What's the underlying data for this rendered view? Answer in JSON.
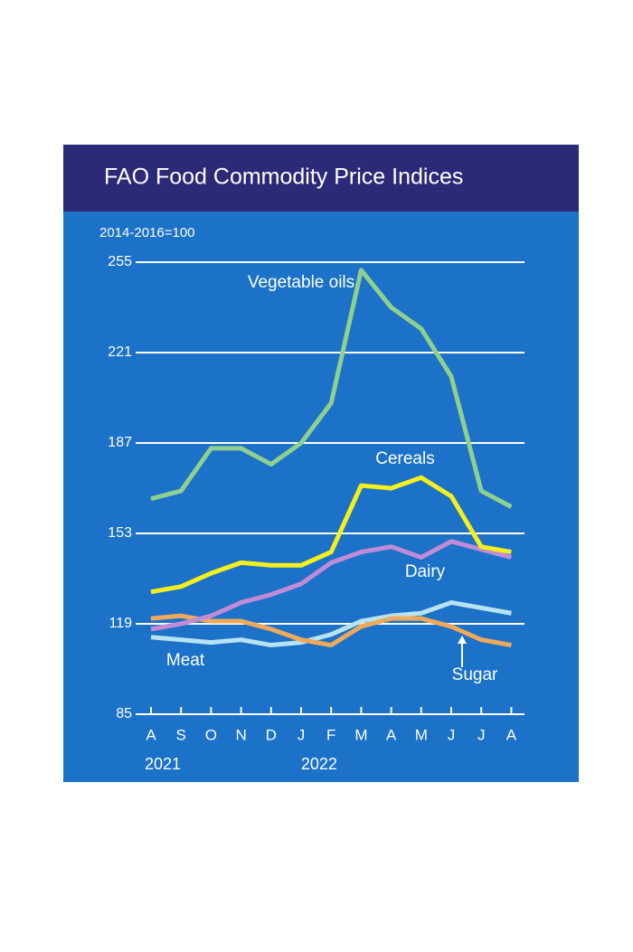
{
  "chart_data": {
    "type": "line",
    "title": "FAO Food Commodity Price Indices",
    "y_unit_label": "2014-2016=100",
    "categories": [
      "A",
      "S",
      "O",
      "N",
      "D",
      "J",
      "F",
      "M",
      "A",
      "M",
      "J",
      "J",
      "A"
    ],
    "year_labels": [
      "2021",
      "2022"
    ],
    "ylim": [
      85,
      255
    ],
    "yticks": [
      85,
      119,
      153,
      187,
      221,
      255
    ],
    "grid": true,
    "series": [
      {
        "name": "Vegetable oils",
        "color": "#8fd08f",
        "values": [
          166,
          169,
          185,
          185,
          179,
          187,
          202,
          252,
          238,
          230,
          212,
          169,
          163
        ]
      },
      {
        "name": "Cereals",
        "color": "#f6ef1c",
        "values": [
          131,
          133,
          138,
          142,
          141,
          141,
          146,
          171,
          170,
          174,
          167,
          148,
          146
        ]
      },
      {
        "name": "Dairy",
        "color": "#c28bd8",
        "values": [
          117,
          119,
          122,
          127,
          130,
          134,
          142,
          146,
          148,
          144,
          150,
          147,
          144
        ]
      },
      {
        "name": "Meat",
        "color": "#b8e3f2",
        "values": [
          114,
          113,
          112,
          113,
          111,
          112,
          115,
          120,
          122,
          123,
          127,
          125,
          123
        ]
      },
      {
        "name": "Sugar",
        "color": "#f0a95a",
        "values": [
          121,
          122,
          120,
          120,
          117,
          113,
          111,
          118,
          121,
          121,
          118,
          113,
          111
        ]
      }
    ]
  }
}
